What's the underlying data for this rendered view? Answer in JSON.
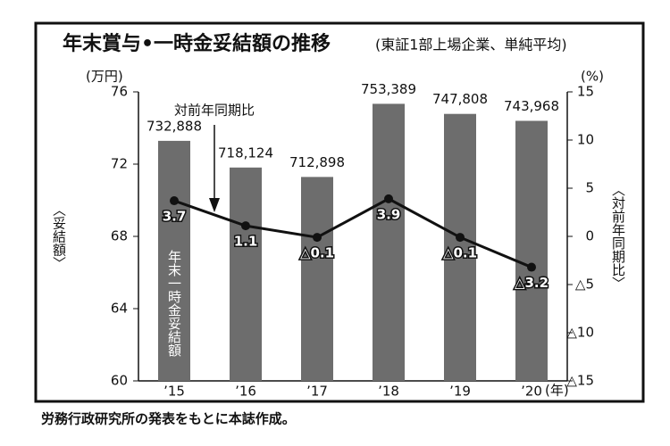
{
  "chart_data": {
    "type": "bar-line",
    "title": "年末賞与•一時金妥結額の推移",
    "subtitle": "(東証1部上場企業、単純平均)",
    "y_unit": "(万円)",
    "y2_unit": "(%)",
    "x_unit": "(年)",
    "y_label": "〈妥結額〉",
    "y2_label": "〈対前年同期比〉",
    "categories": [
      "’15",
      "’16",
      "’17",
      "’18",
      "’19",
      "’20"
    ],
    "series": [
      {
        "name": "年末一時金妥結額",
        "color": "#6d6d6d",
        "values": [
          73.2888,
          71.8124,
          71.2898,
          75.3389,
          74.7808,
          74.3968
        ],
        "value_labels": [
          "732,888",
          "718,124",
          "712,898",
          "753,389",
          "747,808",
          "743,968"
        ]
      },
      {
        "name": "対前年同期比",
        "color": "#111111",
        "axis": "y2",
        "values": [
          3.7,
          1.1,
          -0.1,
          3.9,
          -0.1,
          -3.2
        ],
        "value_labels": [
          "3.7",
          "1.1",
          "△0.1",
          "3.9",
          "△0.1",
          "△3.2"
        ]
      }
    ],
    "ylim": [
      60,
      76
    ],
    "yticks": [
      60,
      64,
      68,
      72,
      76
    ],
    "y2lim": [
      -15,
      15
    ],
    "y2ticks": [
      {
        "value": -15,
        "label": "△15"
      },
      {
        "value": -10,
        "label": "△10"
      },
      {
        "value": -5,
        "label": "△5"
      },
      0,
      5,
      10,
      15
    ],
    "footnote": "労務行政研究所の発表をもとに本誌作成。"
  }
}
